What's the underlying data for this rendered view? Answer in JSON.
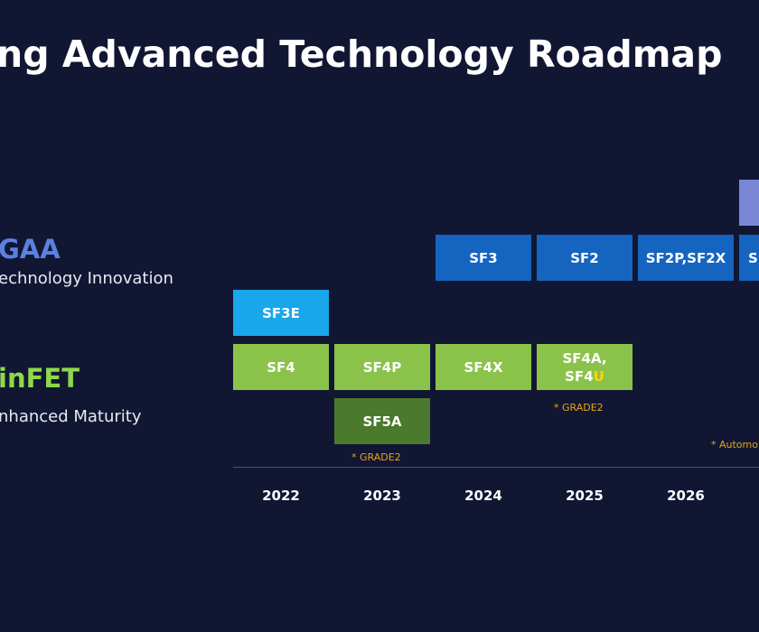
{
  "title": "ng Advanced Technology Roadmap",
  "gaa": {
    "heading": "GAA",
    "subtitle": "echnology Innovation"
  },
  "finfet": {
    "heading": "inFET",
    "subtitle": "nhanced Maturity"
  },
  "nodes": {
    "sf3": "SF3",
    "sf2": "SF2",
    "sf2p_sf2x": "SF2P,SF2X",
    "sf_cut": "S",
    "sf3e": "SF3E",
    "sf4": "SF4",
    "sf4p": "SF4P",
    "sf4x": "SF4X",
    "sf4a": "SF4A,",
    "sf4u_prefix": "SF4",
    "sf4u_suffix": "U",
    "sf5a": "SF5A"
  },
  "notes": {
    "grade2_a": "* GRADE2",
    "grade2_b": "* GRADE2",
    "automotive": "* Automo"
  },
  "years": [
    "2022",
    "2023",
    "2024",
    "2025",
    "2026"
  ],
  "colors": {
    "background": "#111733",
    "gaa": "#1565c0",
    "sf3e": "#1aa6ea",
    "finfet": "#8bc34a",
    "finfet_dark": "#4b7a2e",
    "note": "#e6a417",
    "highlight_u": "#ffd500"
  }
}
